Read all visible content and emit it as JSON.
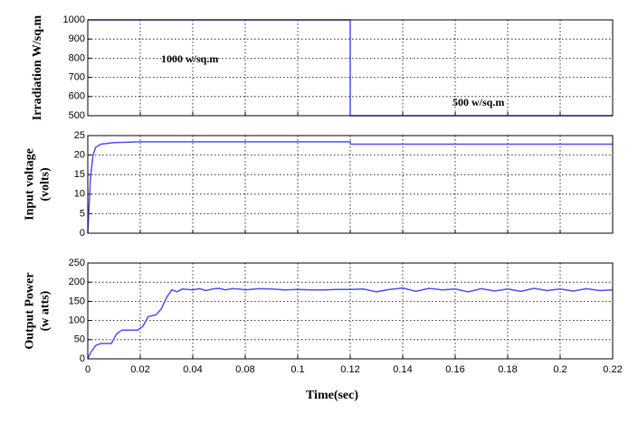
{
  "chart_data": [
    {
      "type": "line",
      "ylabel": [
        "Irradiation W/sq.m"
      ],
      "color": "#4d4dff",
      "ylim": [
        500,
        1000
      ],
      "yticks": [
        500,
        600,
        700,
        800,
        900,
        1000
      ],
      "annotations": [
        "1000 w/sq.m",
        "500 w/sq.m"
      ],
      "grid": true,
      "x": [
        0,
        0.12,
        0.12,
        0.22
      ],
      "values": [
        1000,
        1000,
        500,
        500
      ]
    },
    {
      "type": "line",
      "ylabel": [
        "Input voltage",
        "(volts)"
      ],
      "color": "#4d4dff",
      "ylim": [
        0,
        25
      ],
      "yticks": [
        0,
        5,
        10,
        15,
        20,
        25
      ],
      "grid": true,
      "x": [
        0,
        0.001,
        0.002,
        0.003,
        0.005,
        0.01,
        0.02,
        0.12,
        0.1201,
        0.22
      ],
      "values": [
        0,
        14,
        20,
        22,
        22.8,
        23.2,
        23.4,
        23.4,
        22.8,
        22.8
      ]
    },
    {
      "type": "line",
      "ylabel": [
        "Output Power",
        "(w atts)"
      ],
      "xlabel": "Time(sec)",
      "color": "#4d4dff",
      "ylim": [
        0,
        250
      ],
      "yticks": [
        0,
        50,
        100,
        150,
        200,
        250
      ],
      "xlim": [
        0,
        0.22
      ],
      "xticks": [
        0,
        0.02,
        0.04,
        0.08,
        0.1,
        0.12,
        0.14,
        0.16,
        0.18,
        0.2,
        0.22
      ],
      "grid": true,
      "x": [
        0,
        0.001,
        0.003,
        0.005,
        0.009,
        0.011,
        0.013,
        0.019,
        0.021,
        0.023,
        0.026,
        0.028,
        0.03,
        0.032,
        0.034,
        0.036,
        0.04,
        0.045,
        0.05,
        0.055,
        0.06,
        0.065,
        0.07,
        0.075,
        0.08,
        0.085,
        0.09,
        0.095,
        0.1,
        0.105,
        0.11,
        0.115,
        0.12,
        0.125,
        0.13,
        0.135,
        0.14,
        0.145,
        0.15,
        0.155,
        0.16,
        0.165,
        0.17,
        0.175,
        0.18,
        0.185,
        0.19,
        0.195,
        0.2,
        0.205,
        0.21,
        0.215,
        0.22
      ],
      "values": [
        0,
        15,
        35,
        40,
        40,
        65,
        75,
        75,
        85,
        110,
        115,
        130,
        160,
        180,
        175,
        182,
        180,
        183,
        178,
        182,
        184,
        180,
        183,
        182,
        180,
        183,
        182,
        180,
        181,
        180,
        180,
        181,
        181,
        182,
        175,
        181,
        185,
        176,
        184,
        180,
        182,
        175,
        183,
        177,
        182,
        176,
        184,
        178,
        182,
        177,
        183,
        178,
        180
      ]
    }
  ]
}
